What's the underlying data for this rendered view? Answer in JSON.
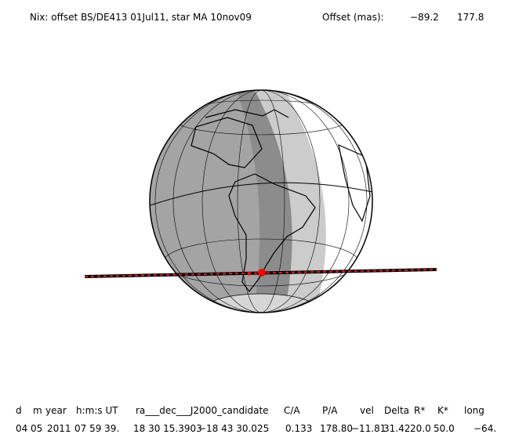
{
  "header": {
    "title": "Nix: offset BS/DE413 01Jul11, star MA 10nov09",
    "offset_label": "Offset (mas):",
    "offset_values": [
      "−89.2",
      "177.8"
    ]
  },
  "table": {
    "columns": [
      "d",
      "m",
      "year",
      "h:m:s UT",
      "ra___dec___J2000_candidate",
      "C/A",
      "P/A",
      "vel",
      "Delta",
      "R*",
      "K*",
      "long"
    ],
    "values": [
      "04",
      "05",
      "2011",
      "07 59 39.",
      "18 30 15.3903",
      "−18 43 30.025",
      "0.133",
      "178.80",
      "−11.81",
      "31.42",
      "20.0",
      "50.0",
      "−64."
    ]
  }
}
